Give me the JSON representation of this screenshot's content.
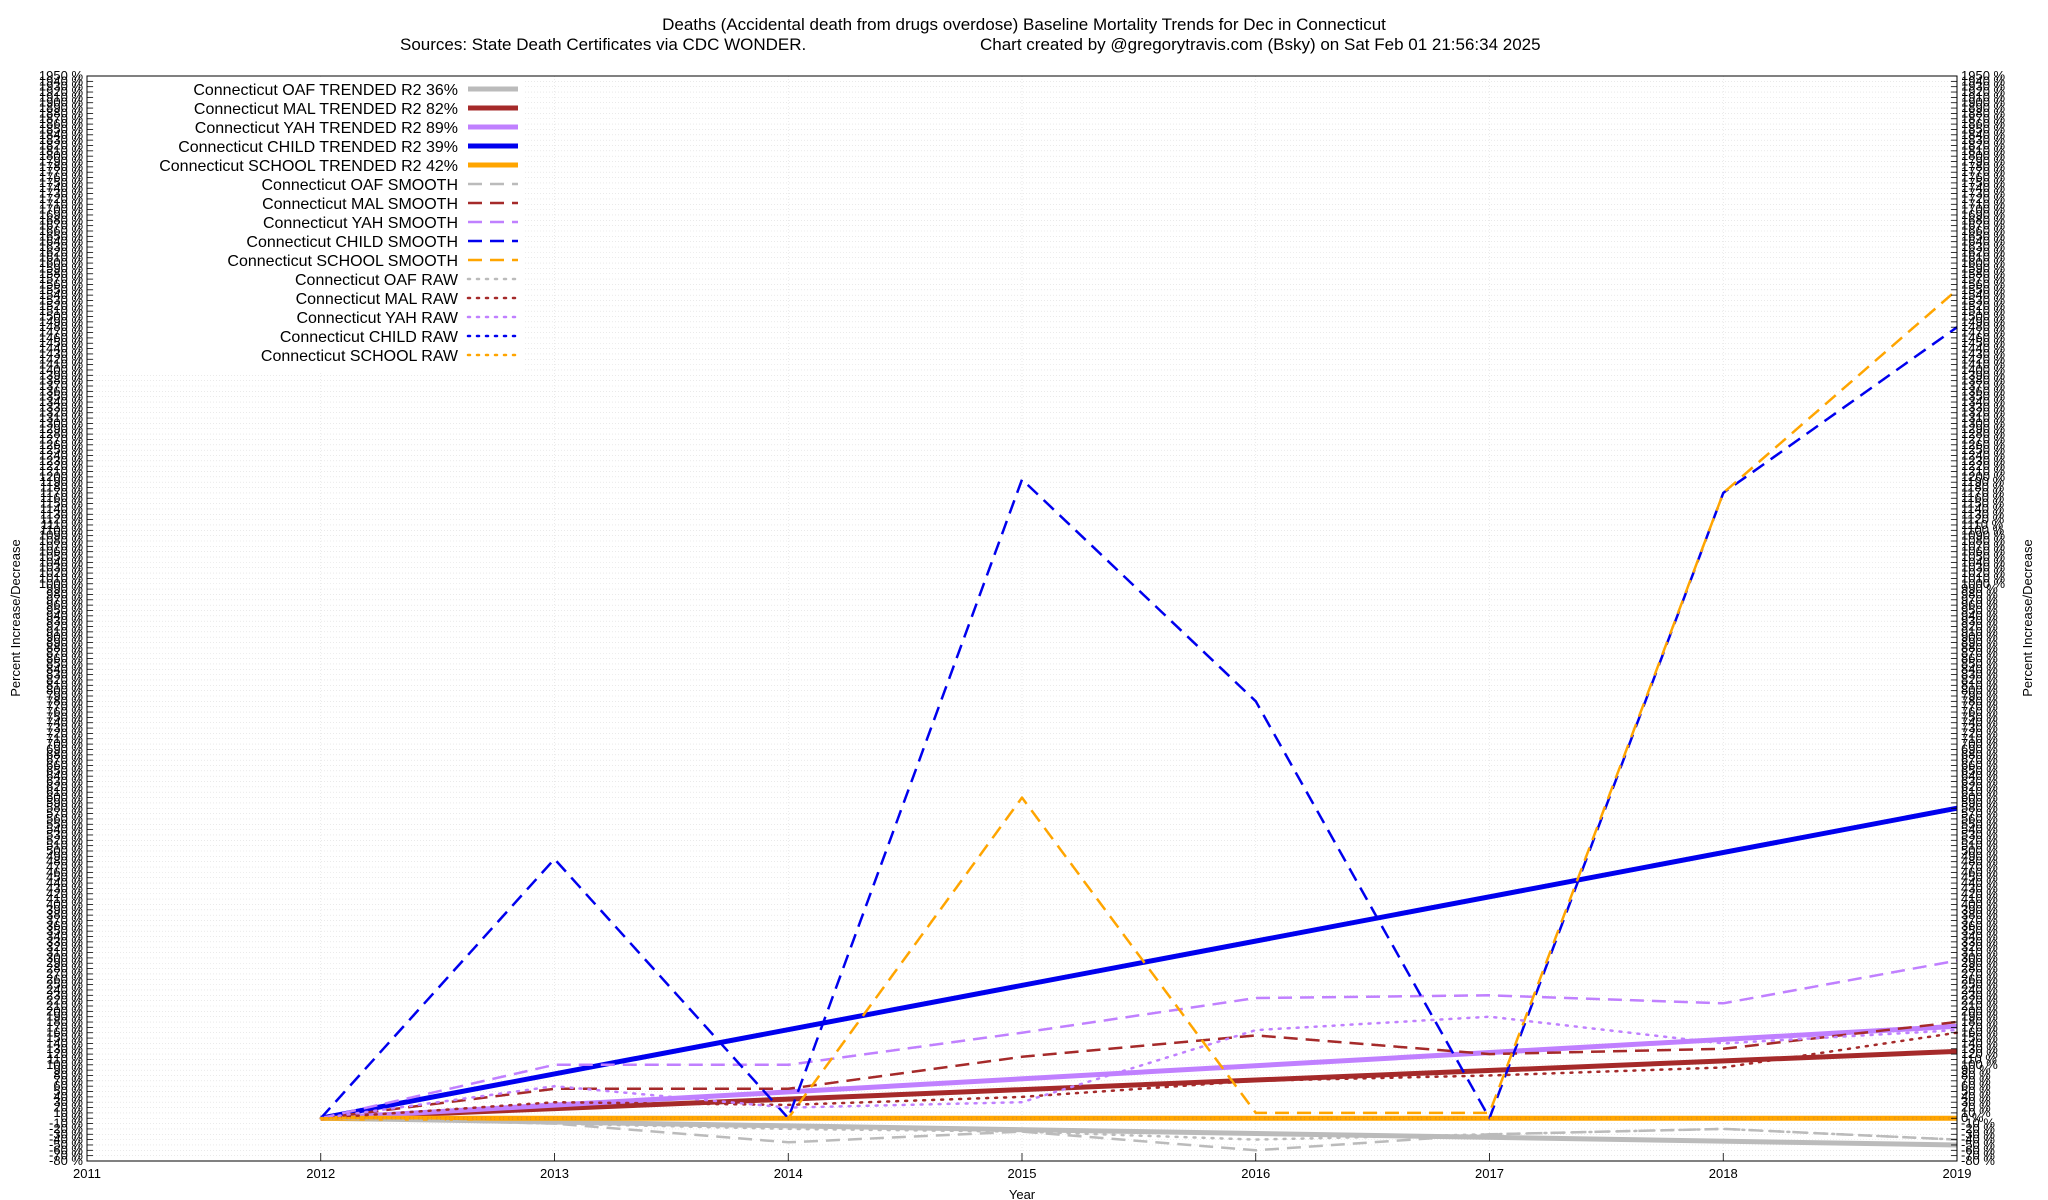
{
  "chart_data": {
    "type": "line",
    "title": "Deaths (Accidental death from drugs overdose)  Baseline Mortality Trends for Dec in Connecticut",
    "subtitle_left": "Sources: State Death Certificates via CDC WONDER.",
    "subtitle_right": "Chart created by @gregorytravis.com (Bsky) on Sat Feb 01 21:56:34 2025",
    "xlabel": "Year",
    "ylabel": "Percent Increase/Decrease",
    "xlim": [
      2011,
      2019
    ],
    "ylim": [
      -80,
      1950
    ],
    "x_ticks": [
      2011,
      2012,
      2013,
      2014,
      2015,
      2016,
      2017,
      2018,
      2019
    ],
    "y_ticks": [
      "-80 %",
      "-70 %",
      "-60 %",
      "-50 %",
      "-40 %",
      "-30 %",
      "-20 %",
      "-10 %",
      "0 %",
      "10 %",
      "20 %",
      "30 %",
      "40 %",
      "50 %",
      "60 %",
      "70 %",
      "80 %",
      "90 %",
      "100 %",
      "110 %",
      "120 %",
      "130 %",
      "140 %",
      "150 %",
      "160 %",
      "170 %",
      "180 %",
      "190 %",
      "200 %",
      "210 %",
      "220 %",
      "230 %",
      "240 %",
      "250 %",
      "260 %",
      "270 %",
      "280 %",
      "290 %",
      "300 %",
      "310 %",
      "320 %",
      "330 %",
      "340 %",
      "350 %",
      "360 %",
      "370 %",
      "380 %",
      "390 %",
      "400 %",
      "410 %",
      "420 %",
      "430 %",
      "440 %",
      "450 %",
      "460 %",
      "470 %",
      "480 %",
      "490 %",
      "500 %",
      "510 %",
      "520 %",
      "530 %",
      "540 %",
      "550 %",
      "560 %",
      "570 %",
      "580 %",
      "590 %",
      "600 %",
      "610 %",
      "620 %",
      "630 %",
      "640 %",
      "650 %",
      "660 %",
      "670 %",
      "680 %",
      "690 %",
      "700 %",
      "710 %",
      "720 %",
      "730 %",
      "740 %",
      "750 %",
      "760 %",
      "770 %",
      "780 %",
      "790 %",
      "800 %",
      "810 %",
      "820 %",
      "830 %",
      "840 %",
      "850 %",
      "860 %",
      "870 %",
      "880 %",
      "890 %",
      "900 %",
      "910 %",
      "920 %",
      "930 %",
      "940 %",
      "950 %",
      "960 %",
      "970 %",
      "980 %",
      "990 %",
      "1000 %",
      "1010 %",
      "1020 %",
      "1030 %",
      "1040 %",
      "1050 %",
      "1060 %",
      "1070 %",
      "1080 %",
      "1090 %",
      "1100 %",
      "1110 %",
      "1120 %",
      "1130 %",
      "1140 %",
      "1150 %",
      "1160 %",
      "1170 %",
      "1180 %",
      "1190 %",
      "1200 %",
      "1210 %",
      "1220 %",
      "1230 %",
      "1240 %",
      "1250 %",
      "1260 %",
      "1270 %",
      "1280 %",
      "1290 %",
      "1300 %",
      "1310 %",
      "1320 %",
      "1330 %",
      "1340 %",
      "1350 %",
      "1360 %",
      "1370 %",
      "1380 %",
      "1390 %",
      "1400 %",
      "1410 %",
      "1420 %",
      "1430 %",
      "1440 %",
      "1450 %",
      "1460 %",
      "1470 %",
      "1480 %",
      "1490 %",
      "1500 %",
      "1510 %",
      "1520 %",
      "1530 %",
      "1540 %",
      "1550 %",
      "1560 %",
      "1570 %",
      "1580 %",
      "1590 %",
      "1600 %",
      "1610 %",
      "1620 %",
      "1630 %",
      "1640 %",
      "1650 %",
      "1660 %",
      "1670 %",
      "1680 %",
      "1690 %",
      "1700 %",
      "1710 %",
      "1720 %",
      "1730 %",
      "1740 %",
      "1750 %",
      "1760 %",
      "1770 %",
      "1780 %",
      "1790 %",
      "1800 %",
      "1810 %",
      "1820 %",
      "1830 %",
      "1840 %",
      "1850 %",
      "1860 %",
      "1870 %",
      "1880 %",
      "1890 %",
      "1900 %",
      "1910 %",
      "1920 %",
      "1930 %",
      "1940 %",
      "1950 %"
    ],
    "grid": true,
    "legend_position": "top-left",
    "series": [
      {
        "name": "Connecticut OAF TRENDED R2  36%",
        "color": "#bbbbbb",
        "style": "solid",
        "width": 5,
        "x": [
          2012,
          2019
        ],
        "y": [
          0,
          -50
        ]
      },
      {
        "name": "Connecticut MAL TRENDED R2  82%",
        "color": "#a52a2a",
        "style": "solid",
        "width": 5,
        "x": [
          2012,
          2019
        ],
        "y": [
          0,
          125
        ]
      },
      {
        "name": "Connecticut YAH TRENDED R2  89%",
        "color": "#c080ff",
        "style": "solid",
        "width": 5,
        "x": [
          2012,
          2019
        ],
        "y": [
          0,
          172
        ]
      },
      {
        "name": "Connecticut CHILD TRENDED R2  39%",
        "color": "#0000ee",
        "style": "solid",
        "width": 5,
        "x": [
          2012,
          2019
        ],
        "y": [
          0,
          580
        ]
      },
      {
        "name": "Connecticut SCHOOL TRENDED R2  42%",
        "color": "#ffa500",
        "style": "solid",
        "width": 5,
        "x": [
          2012,
          2019
        ],
        "y": [
          0,
          0
        ]
      },
      {
        "name": "Connecticut OAF SMOOTH",
        "color": "#bbbbbb",
        "style": "dashed",
        "width": 2.5,
        "x": [
          2012,
          2013,
          2014,
          2015,
          2016,
          2017,
          2018,
          2019
        ],
        "y": [
          0,
          -10,
          -45,
          -25,
          -60,
          -30,
          -20,
          -40
        ]
      },
      {
        "name": "Connecticut MAL SMOOTH",
        "color": "#a52a2a",
        "style": "dashed",
        "width": 2.5,
        "x": [
          2012,
          2013,
          2014,
          2015,
          2016,
          2017,
          2018,
          2019
        ],
        "y": [
          0,
          55,
          55,
          115,
          155,
          120,
          130,
          180
        ]
      },
      {
        "name": "Connecticut YAH SMOOTH",
        "color": "#c080ff",
        "style": "dashed",
        "width": 2.5,
        "x": [
          2012,
          2013,
          2014,
          2015,
          2016,
          2017,
          2018,
          2019
        ],
        "y": [
          0,
          100,
          100,
          160,
          225,
          230,
          215,
          295
        ]
      },
      {
        "name": "Connecticut CHILD SMOOTH",
        "color": "#0000ee",
        "style": "dashed",
        "width": 2.5,
        "x": [
          2012,
          2013,
          2014,
          2015,
          2016,
          2017,
          2018,
          2019
        ],
        "y": [
          0,
          485,
          0,
          1195,
          780,
          0,
          1170,
          1480
        ]
      },
      {
        "name": "Connecticut SCHOOL SMOOTH",
        "color": "#ffa500",
        "style": "dashed",
        "width": 2.5,
        "x": [
          2012,
          2014,
          2015,
          2016,
          2017,
          2018,
          2019
        ],
        "y": [
          0,
          0,
          600,
          10,
          10,
          1170,
          1550
        ]
      },
      {
        "name": "Connecticut OAF RAW",
        "color": "#bbbbbb",
        "style": "dotted",
        "width": 2.5,
        "x": [
          2012,
          2013,
          2014,
          2015,
          2016,
          2017,
          2018,
          2019
        ],
        "y": [
          0,
          -10,
          -20,
          -25,
          -40,
          -30,
          -20,
          -40
        ]
      },
      {
        "name": "Connecticut MAL RAW",
        "color": "#a52a2a",
        "style": "dotted",
        "width": 2.5,
        "x": [
          2012,
          2013,
          2014,
          2015,
          2016,
          2017,
          2018,
          2019
        ],
        "y": [
          0,
          30,
          25,
          40,
          70,
          80,
          95,
          160
        ]
      },
      {
        "name": "Connecticut YAH RAW",
        "color": "#c080ff",
        "style": "dotted",
        "width": 2.5,
        "x": [
          2012,
          2013,
          2014,
          2015,
          2016,
          2017,
          2018,
          2019
        ],
        "y": [
          0,
          60,
          20,
          30,
          165,
          190,
          140,
          165
        ]
      },
      {
        "name": "Connecticut CHILD RAW",
        "color": "#0000ee",
        "style": "dotted",
        "width": 2.5,
        "x": [
          2012,
          2019
        ],
        "y": [
          0,
          0
        ]
      },
      {
        "name": "Connecticut SCHOOL RAW",
        "color": "#ffa500",
        "style": "dotted",
        "width": 2.5,
        "x": [
          2012,
          2019
        ],
        "y": [
          0,
          0
        ]
      }
    ]
  }
}
